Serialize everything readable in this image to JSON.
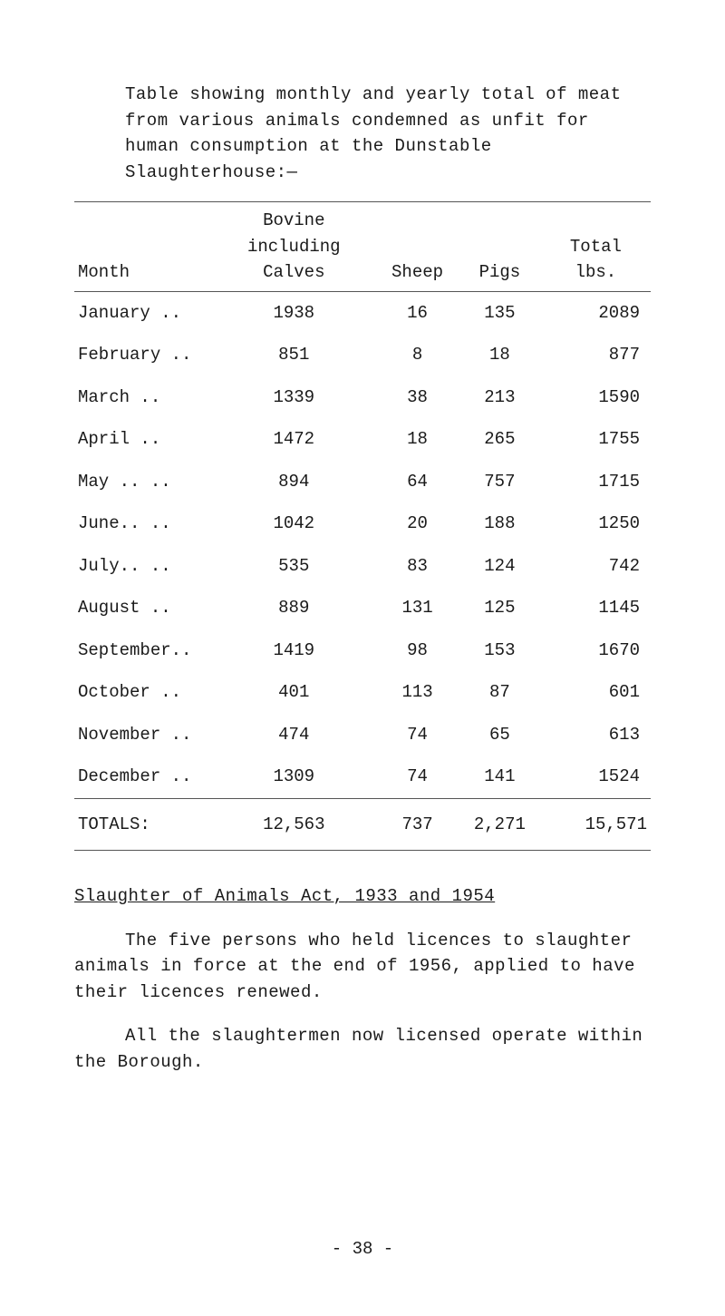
{
  "intro": {
    "text": "Table showing monthly and yearly total of meat from various animals condemned as unfit for human consumption at the Dunstable Slaughterhouse:—"
  },
  "table": {
    "columns": {
      "month": "Month",
      "bovine_line1": "Bovine",
      "bovine_line2": "including Calves",
      "sheep": "Sheep",
      "pigs": "Pigs",
      "total": "Total lbs."
    },
    "rows": [
      {
        "month": "January ..",
        "bovine": "1938",
        "sheep": "16",
        "pigs": "135",
        "total": "2089"
      },
      {
        "month": "February ..",
        "bovine": "851",
        "sheep": "8",
        "pigs": "18",
        "total": "877"
      },
      {
        "month": "March   ..",
        "bovine": "1339",
        "sheep": "38",
        "pigs": "213",
        "total": "1590"
      },
      {
        "month": "April   ..",
        "bovine": "1472",
        "sheep": "18",
        "pigs": "265",
        "total": "1755"
      },
      {
        "month": "May ..  ..",
        "bovine": "894",
        "sheep": "64",
        "pigs": "757",
        "total": "1715"
      },
      {
        "month": "June..  ..",
        "bovine": "1042",
        "sheep": "20",
        "pigs": "188",
        "total": "1250"
      },
      {
        "month": "July..  ..",
        "bovine": "535",
        "sheep": "83",
        "pigs": "124",
        "total": "742"
      },
      {
        "month": "August  ..",
        "bovine": "889",
        "sheep": "131",
        "pigs": "125",
        "total": "1145"
      },
      {
        "month": "September..",
        "bovine": "1419",
        "sheep": "98",
        "pigs": "153",
        "total": "1670"
      },
      {
        "month": "October ..",
        "bovine": "401",
        "sheep": "113",
        "pigs": "87",
        "total": "601"
      },
      {
        "month": "November ..",
        "bovine": "474",
        "sheep": "74",
        "pigs": "65",
        "total": "613"
      },
      {
        "month": "December ..",
        "bovine": "1309",
        "sheep": "74",
        "pigs": "141",
        "total": "1524"
      }
    ],
    "totals": {
      "label": "TOTALS:",
      "bovine": "12,563",
      "sheep": "737",
      "pigs": "2,271",
      "total": "15,571"
    }
  },
  "section": {
    "title": "Slaughter of Animals Act, 1933 and 1954",
    "para1": "The five persons who held licences to slaughter animals in force at the end of 1956, applied to have their licences renewed.",
    "para2": "All the slaughtermen now licensed operate within the Borough."
  },
  "pagenum": "- 38 -",
  "style": {
    "background_color": "#ffffff",
    "text_color": "#1a1a1a",
    "border_color": "#555555",
    "font_family": "Courier New",
    "font_size_pt": 14
  }
}
